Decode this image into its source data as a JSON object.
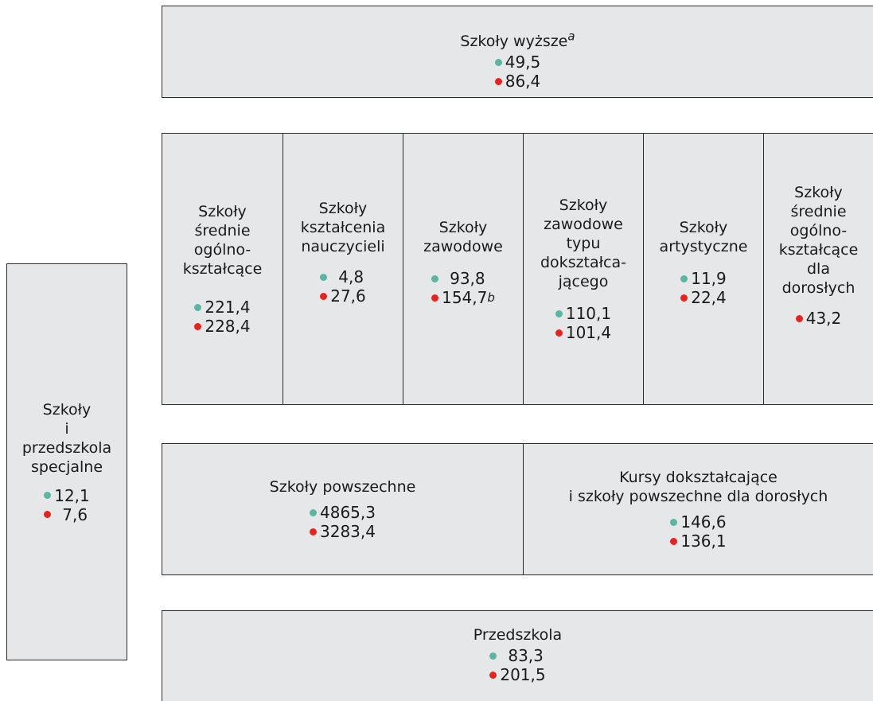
{
  "legend_colors": {
    "teal": "#5bb5a2",
    "red": "#e52421"
  },
  "boxes": {
    "szkoly_wyzsze": {
      "label": "Szkoły wyższe",
      "footnote": "a",
      "teal": "49,5",
      "red": "86,4"
    },
    "srednie_ogolnoksztalcace": {
      "label": "Szkoły\nśrednie\nogólno-\nkształcące",
      "teal": "221,4",
      "red": "228,4"
    },
    "ksztalcenia_nauczycieli": {
      "label": "Szkoły\nkształcenia\nnauczycieli",
      "teal": "4,8",
      "red": "27,6"
    },
    "zawodowe": {
      "label": "Szkoły\nzawodowe",
      "teal": "93,8",
      "red": "154,7",
      "red_footnote": "b"
    },
    "zawodowe_dokszt": {
      "label": "Szkoły\nzawodowe\ntypu\ndokształca-\njącego",
      "teal": "110,1",
      "red": "101,4"
    },
    "artystyczne": {
      "label": "Szkoły\nartystyczne",
      "teal": "11,9",
      "red": "22,4"
    },
    "srednie_dorosli": {
      "label": "Szkoły\nśrednie\nogólno-\nkształcące\ndla\ndorosłych",
      "red": "43,2"
    },
    "specjalne": {
      "label": "Szkoły\ni\nprzedszkola\nspecjalne",
      "teal": "12,1",
      "red": "7,6"
    },
    "powszechne": {
      "label": "Szkoły powszechne",
      "teal": "4865,3",
      "red": "3283,4"
    },
    "kursy": {
      "label": "Kursy dokształcające\ni szkoły powszechne dla dorosłych",
      "teal": "146,6",
      "red": "136,1"
    },
    "przedszkola": {
      "label": "Przedszkola",
      "teal": "83,3",
      "red": "201,5"
    }
  }
}
